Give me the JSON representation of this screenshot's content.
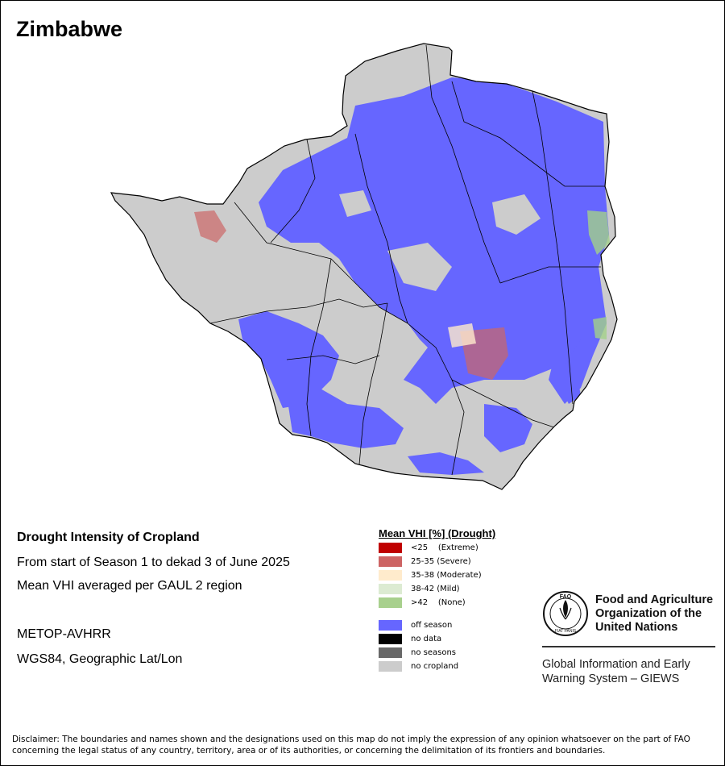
{
  "map": {
    "title": "Zimbabwe",
    "colors": {
      "off_season": "#6666ff",
      "no_cropland": "#cccccc",
      "border": "#000000",
      "severe_patch": "#cc6666",
      "moderate_patch": "#ffebcc",
      "none_patch": "#a3d18a"
    }
  },
  "info": {
    "heading": "Drought Intensity of Cropland",
    "period": "From start of Season 1 to dekad 3 of June 2025",
    "method": "Mean VHI averaged per GAUL 2 region",
    "sensor": "METOP-AVHRR",
    "projection": "WGS84, Geographic Lat/Lon"
  },
  "legend": {
    "title": "Mean VHI [%] (Drought)",
    "items": [
      {
        "label": "<25    (Extreme)",
        "color": "#c00000"
      },
      {
        "label": "25-35 (Severe)",
        "color": "#cd6464"
      },
      {
        "label": "35-38 (Moderate)",
        "color": "#ffebcc"
      },
      {
        "label": "38-42 (Mild)",
        "color": "#dcebd2"
      },
      {
        "label": ">42    (None)",
        "color": "#a8d08d"
      }
    ],
    "status_items": [
      {
        "label": "off season",
        "color": "#6666ff"
      },
      {
        "label": "no data",
        "color": "#000000"
      },
      {
        "label": "no seasons",
        "color": "#686868"
      },
      {
        "label": "no cropland",
        "color": "#cccccc"
      }
    ]
  },
  "logo": {
    "emblem_text": "FAO",
    "emblem_motto": "FIAT PANIS",
    "org_line1": "Food and Agriculture",
    "org_line2": "Organization of the",
    "org_line3": "United Nations",
    "giews_line1": "Global Information and Early",
    "giews_line2": "Warning System – GIEWS"
  },
  "disclaimer": "Disclaimer: The boundaries and names shown and the designations used on this map do not imply the expression of any opinion whatsoever on the part of FAO concerning the legal status of any country, territory, area or of its authorities, or concerning the delimitation of its frontiers and boundaries."
}
